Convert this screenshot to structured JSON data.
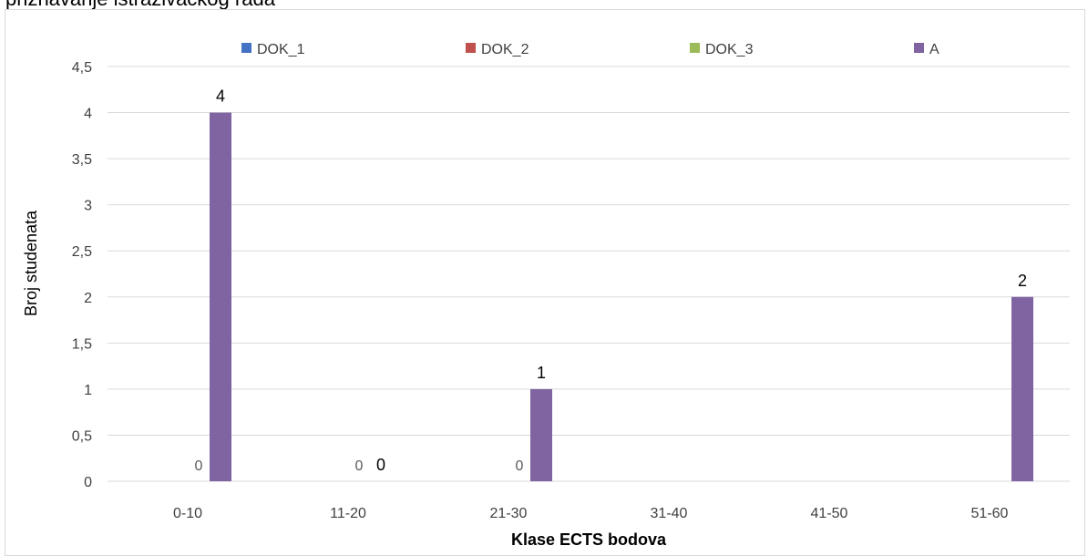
{
  "page": {
    "title_fragment": "priznavanje istraživačkog rada"
  },
  "chart_data": {
    "type": "bar",
    "categories": [
      "0-10",
      "11-20",
      "21-30",
      "31-40",
      "41-50",
      "51-60"
    ],
    "series": [
      {
        "name": "DOK_1",
        "color": "#4472c4",
        "values": [
          0,
          0,
          0,
          0,
          0,
          0
        ]
      },
      {
        "name": "DOK_2",
        "color": "#c0504d",
        "values": [
          0,
          0,
          0,
          0,
          0,
          0
        ]
      },
      {
        "name": "DOK_3",
        "color": "#9bbb59",
        "values": [
          0,
          0,
          0,
          0,
          0,
          0
        ]
      },
      {
        "name": "A",
        "color": "#8064a2",
        "values": [
          4,
          0,
          1,
          0,
          0,
          2
        ]
      }
    ],
    "data_labels": [
      {
        "category": "0-10",
        "series": "DOK_3",
        "text": "0"
      },
      {
        "category": "0-10",
        "series": "A",
        "text": "4"
      },
      {
        "category": "11-20",
        "series": "DOK_3",
        "text": "0"
      },
      {
        "category": "11-20",
        "series": "A",
        "text": "0"
      },
      {
        "category": "21-30",
        "series": "DOK_3",
        "text": "0"
      },
      {
        "category": "21-30",
        "series": "A",
        "text": "1"
      },
      {
        "category": "51-60",
        "series": "A",
        "text": "2"
      }
    ],
    "yticks": [
      "0",
      "0,5",
      "1",
      "1,5",
      "2",
      "2,5",
      "3",
      "3,5",
      "4",
      "4,5"
    ],
    "ylim": [
      0,
      4.5
    ],
    "xlabel": "Klase ECTS bodova",
    "ylabel": "Broj studenata",
    "grid": true,
    "legend_position": "top"
  }
}
